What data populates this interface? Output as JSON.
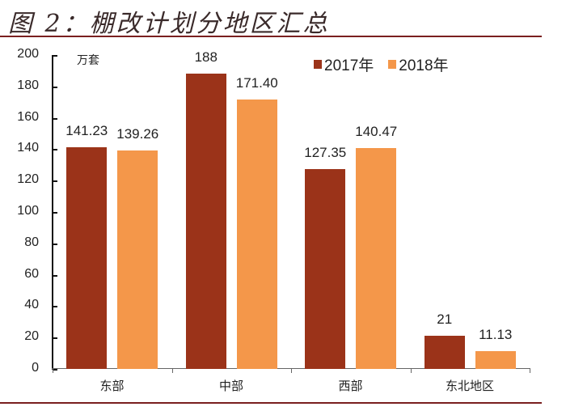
{
  "title": "图 2：棚改计划分地区汇总",
  "colors": {
    "s2017": "#9B3319",
    "s2018": "#F4974A",
    "rule": "#7a1f1f"
  },
  "chart_data": {
    "type": "bar",
    "title": "图 2：棚改计划分地区汇总",
    "xlabel": "",
    "ylabel": "万套",
    "unit_label": "万套",
    "categories": [
      "东部",
      "中部",
      "西部",
      "东北地区"
    ],
    "series": [
      {
        "name": "2017年",
        "values": [
          141.23,
          188,
          127.35,
          21
        ],
        "labels": [
          "141.23",
          "188",
          "127.35",
          "21"
        ]
      },
      {
        "name": "2018年",
        "values": [
          139.26,
          171.4,
          140.47,
          11.13
        ],
        "labels": [
          "139.26",
          "171.40",
          "140.47",
          "11.13"
        ]
      }
    ],
    "ylim": [
      0,
      200
    ],
    "yticks": [
      0,
      20,
      40,
      60,
      80,
      100,
      120,
      140,
      160,
      180,
      200
    ],
    "grid": false,
    "legend_position": "top-right"
  }
}
